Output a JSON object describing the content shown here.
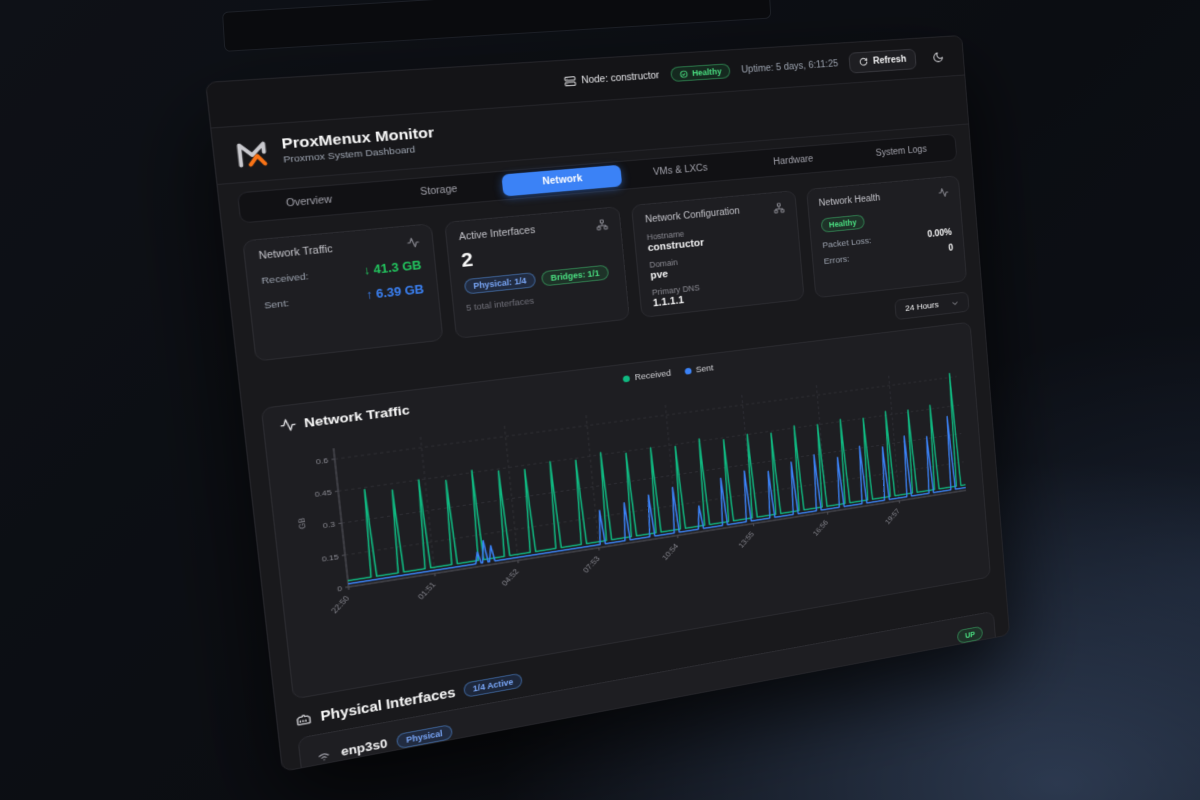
{
  "topbar": {
    "node_label": "Node: constructor",
    "health": "Healthy",
    "uptime": "Uptime: 5 days, 6:11:25",
    "refresh": "Refresh"
  },
  "header": {
    "title": "ProxMenux Monitor",
    "subtitle": "Proxmox System Dashboard"
  },
  "tabs": [
    {
      "label": "Overview",
      "active": false
    },
    {
      "label": "Storage",
      "active": false
    },
    {
      "label": "Network",
      "active": true
    },
    {
      "label": "VMs & LXCs",
      "active": false
    },
    {
      "label": "Hardware",
      "active": false
    },
    {
      "label": "System Logs",
      "active": false
    }
  ],
  "cards": {
    "traffic": {
      "title": "Network Traffic",
      "rows": [
        {
          "label": "Received:",
          "value": "↓ 41.3 GB",
          "color": "green"
        },
        {
          "label": "Sent:",
          "value": "↑ 6.39 GB",
          "color": "blue"
        }
      ]
    },
    "interfaces": {
      "title": "Active Interfaces",
      "count": "2",
      "badges": [
        {
          "label": "Physical: 1/4",
          "color": "blue"
        },
        {
          "label": "Bridges: 1/1",
          "color": "green"
        }
      ],
      "note": "5 total interfaces"
    },
    "config": {
      "title": "Network Configuration",
      "fields": [
        {
          "label": "Hostname",
          "value": "constructor"
        },
        {
          "label": "Domain",
          "value": "pve"
        },
        {
          "label": "Primary DNS",
          "value": "1.1.1.1"
        }
      ]
    },
    "health": {
      "title": "Network Health",
      "status": "Healthy",
      "rows": [
        {
          "label": "Packet Loss:",
          "value": "0.00%"
        },
        {
          "label": "Errors:",
          "value": "0"
        }
      ]
    }
  },
  "time_range": {
    "selected": "24 Hours"
  },
  "chart_card": {
    "title": "Network Traffic"
  },
  "chart_data": {
    "type": "line",
    "title": "Network Traffic",
    "ylabel": "GB",
    "ylim": [
      0,
      0.65
    ],
    "yticks": [
      0,
      0.15,
      0.3,
      0.45,
      0.6
    ],
    "x_hours_span": 24,
    "grid": "dashed",
    "legend_position": "top-center",
    "xticks": [
      {
        "t": 0,
        "label": "22:50"
      },
      {
        "t": 3.02,
        "label": "01:51"
      },
      {
        "t": 6.03,
        "label": "04:52"
      },
      {
        "t": 9.05,
        "label": "07:53"
      },
      {
        "t": 12.07,
        "label": "10:54"
      },
      {
        "t": 15.08,
        "label": "13:55"
      },
      {
        "t": 18.1,
        "label": "16:56"
      },
      {
        "t": 21.12,
        "label": "19:57"
      }
    ],
    "series": [
      {
        "name": "Received",
        "color": "#10b981",
        "baseline": 0.03,
        "spikes": [
          [
            0.9,
            0.44
          ],
          [
            1.85,
            0.42
          ],
          [
            2.8,
            0.45
          ],
          [
            3.75,
            0.43
          ],
          [
            4.7,
            0.46
          ],
          [
            5.65,
            0.44
          ],
          [
            6.6,
            0.43
          ],
          [
            7.55,
            0.45
          ],
          [
            8.5,
            0.44
          ],
          [
            9.45,
            0.46
          ],
          [
            10.4,
            0.44
          ],
          [
            11.35,
            0.45
          ],
          [
            12.3,
            0.44
          ],
          [
            13.25,
            0.46
          ],
          [
            14.2,
            0.44
          ],
          [
            15.15,
            0.45
          ],
          [
            16.1,
            0.44
          ],
          [
            17.05,
            0.46
          ],
          [
            18.0,
            0.45
          ],
          [
            18.95,
            0.46
          ],
          [
            19.9,
            0.45
          ],
          [
            20.85,
            0.47
          ],
          [
            21.8,
            0.46
          ],
          [
            22.75,
            0.47
          ],
          [
            23.7,
            0.62
          ]
        ]
      },
      {
        "name": "Sent",
        "color": "#3b82f6",
        "baseline": 0.015,
        "spikes": [
          [
            4.6,
            0.07
          ],
          [
            4.85,
            0.12
          ],
          [
            5.1,
            0.09
          ],
          [
            9.2,
            0.18
          ],
          [
            10.15,
            0.2
          ],
          [
            11.1,
            0.22
          ],
          [
            12.05,
            0.24
          ],
          [
            13.0,
            0.13
          ],
          [
            13.95,
            0.25
          ],
          [
            14.9,
            0.27
          ],
          [
            15.85,
            0.25
          ],
          [
            16.8,
            0.28
          ],
          [
            17.75,
            0.3
          ],
          [
            18.7,
            0.27
          ],
          [
            19.65,
            0.31
          ],
          [
            20.6,
            0.29
          ],
          [
            21.55,
            0.33
          ],
          [
            22.5,
            0.31
          ],
          [
            23.45,
            0.4
          ]
        ]
      }
    ]
  },
  "physical_section": {
    "title": "Physical Interfaces",
    "active_badge": "1/4 Active",
    "interfaces": [
      {
        "name": "enp3s0",
        "type_badge": "Physical",
        "status": "UP"
      }
    ]
  },
  "colors": {
    "accent_blue": "#3b82f6",
    "green": "#22c55e",
    "received_line": "#10b981",
    "sent_line": "#3b82f6",
    "logo_orange": "#f97316"
  }
}
